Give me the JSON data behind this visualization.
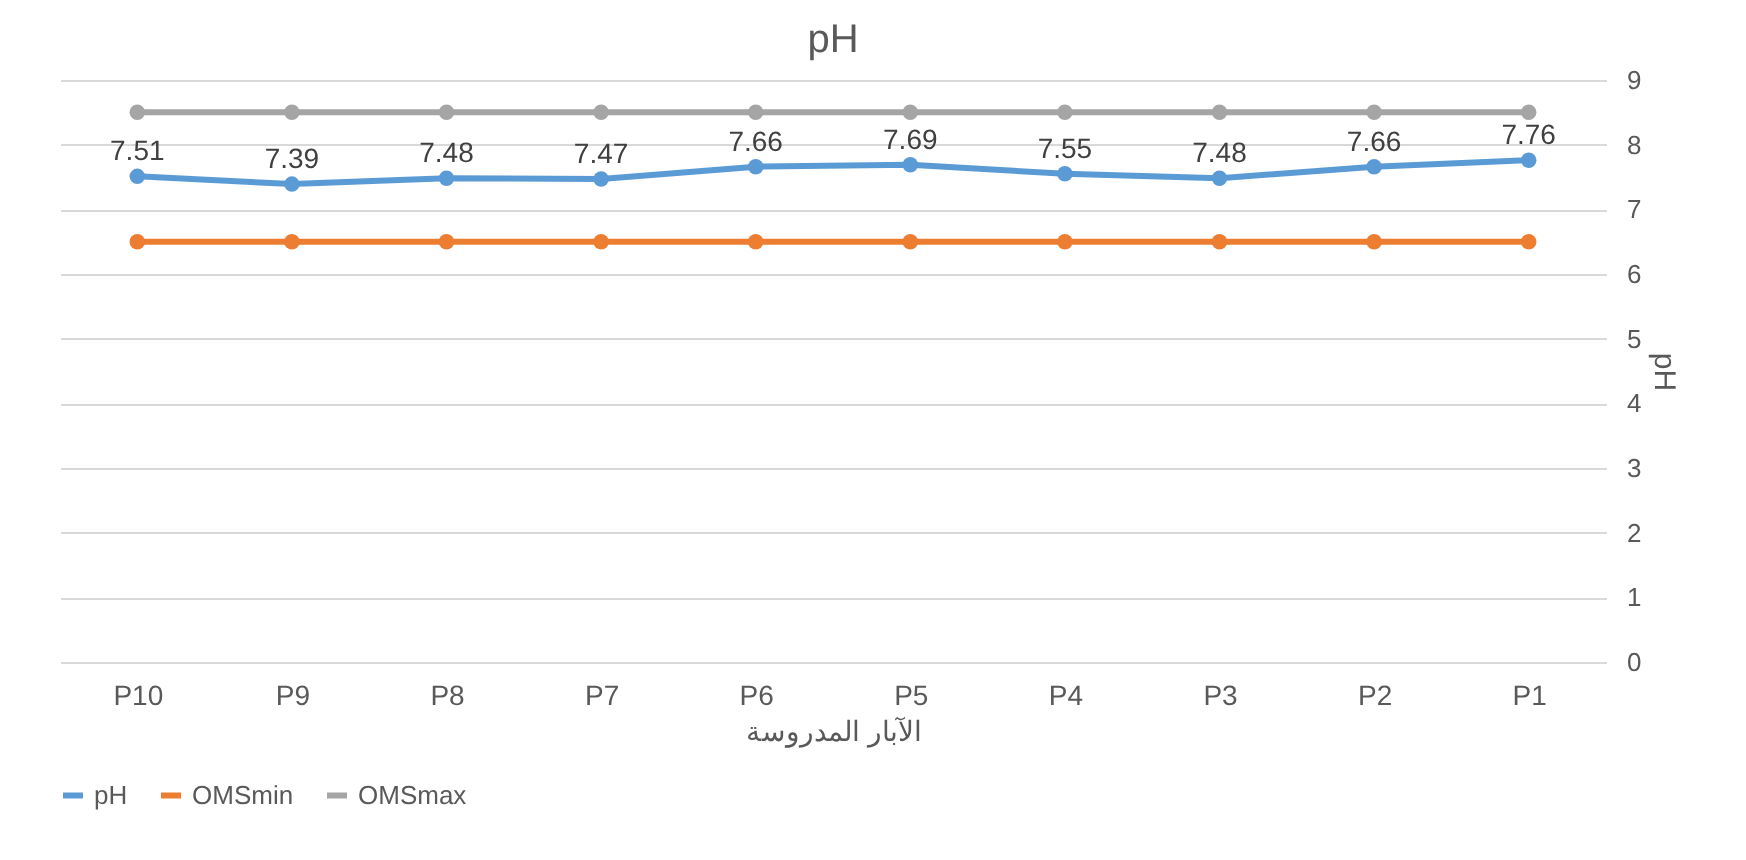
{
  "chart_data": {
    "type": "line",
    "title": "pH",
    "xlabel": "الآبار المدروسة",
    "ylabel": "pH",
    "categories": [
      "P10",
      "P9",
      "P8",
      "P7",
      "P6",
      "P5",
      "P4",
      "P3",
      "P2",
      "P1"
    ],
    "series": [
      {
        "name": "pH",
        "color": "#5b9bd5",
        "values": [
          7.51,
          7.39,
          7.48,
          7.47,
          7.66,
          7.69,
          7.55,
          7.48,
          7.66,
          7.76
        ],
        "value_labels": [
          "7.51",
          "7.39",
          "7.48",
          "7.47",
          "7.66",
          "7.69",
          "7.55",
          "7.48",
          "7.66",
          "7.76"
        ]
      },
      {
        "name": "OMSmin",
        "color": "#ed7d31",
        "values": [
          6.5,
          6.5,
          6.5,
          6.5,
          6.5,
          6.5,
          6.5,
          6.5,
          6.5,
          6.5
        ]
      },
      {
        "name": "OMSmax",
        "color": "#a5a5a5",
        "values": [
          8.5,
          8.5,
          8.5,
          8.5,
          8.5,
          8.5,
          8.5,
          8.5,
          8.5,
          8.5
        ]
      }
    ],
    "ylim": [
      0,
      9
    ],
    "yticks": [
      0,
      1,
      2,
      3,
      4,
      5,
      6,
      7,
      8,
      9
    ],
    "grid": "y",
    "legend": "bottom",
    "marker": "circle",
    "line_style": "solid"
  }
}
